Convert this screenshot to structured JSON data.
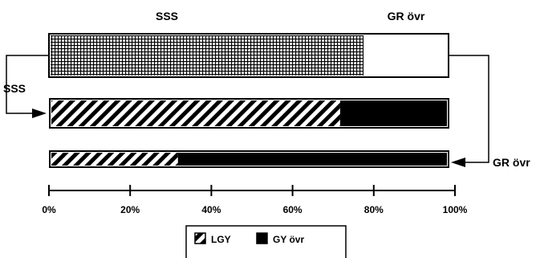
{
  "chart_data": {
    "type": "bar",
    "orientation": "horizontal",
    "stacked": true,
    "normalized": true,
    "x_ticks": [
      "0%",
      "20%",
      "40%",
      "60%",
      "80%",
      "100%"
    ],
    "xlim": [
      0,
      100
    ],
    "bars": [
      {
        "segments": [
          {
            "series": "SSS",
            "value": 79
          },
          {
            "series": "GR övr",
            "value": 21
          }
        ]
      },
      {
        "segments": [
          {
            "series": "LGY",
            "value": 73
          },
          {
            "series": "GY övr",
            "value": 27
          }
        ]
      },
      {
        "segments": [
          {
            "series": "LGY",
            "value": 32
          },
          {
            "series": "GY övr",
            "value": 68
          }
        ]
      }
    ],
    "top_labels": [
      "SSS",
      "GR övr"
    ],
    "arrow_labels": {
      "left": "SSS",
      "right": "GR övr"
    },
    "legend": {
      "position": "bottom-center",
      "items": [
        {
          "label": "LGY",
          "pattern": "diagonal-hatch"
        },
        {
          "label": "GY övr",
          "pattern": "solid-black"
        }
      ]
    },
    "colors": {
      "ink": "#000000",
      "background": "#ffffff"
    }
  }
}
